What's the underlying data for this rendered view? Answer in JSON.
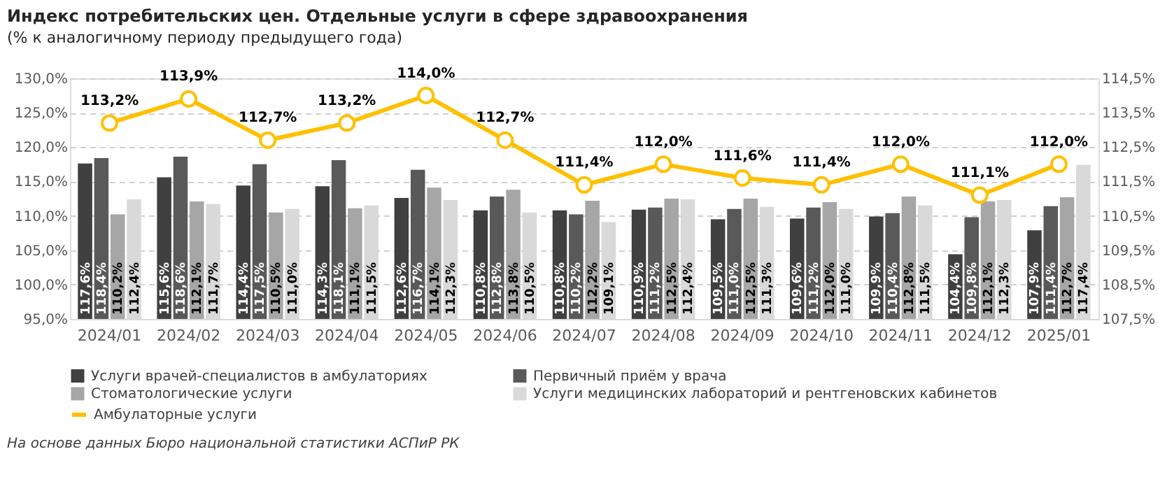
{
  "chart_data": {
    "type": "bar",
    "title": "Индекс потребительских цен. Отдельные услуги в сфере здравоохранения",
    "subtitle": "(% к аналогичному периоду предыдущего года)",
    "categories": [
      "2024/01",
      "2024/02",
      "2024/03",
      "2024/04",
      "2024/05",
      "2024/06",
      "2024/07",
      "2024/08",
      "2024/09",
      "2024/10",
      "2024/11",
      "2024/12",
      "2025/01"
    ],
    "series": [
      {
        "name": "Услуги врачей-специалистов в амбулаториях",
        "color": "#404040",
        "values": [
          117.6,
          115.6,
          114.4,
          114.3,
          112.6,
          110.8,
          110.8,
          110.9,
          109.5,
          109.6,
          109.9,
          104.4,
          107.9
        ],
        "value_labels": [
          "117,6%",
          "115,6%",
          "114,4%",
          "114,3%",
          "112,6%",
          "110,8%",
          "110,8%",
          "110,9%",
          "109,5%",
          "109,6%",
          "109,9%",
          "104,4%",
          "107,9%"
        ]
      },
      {
        "name": "Первичный приём у врача",
        "color": "#595959",
        "values": [
          118.4,
          118.6,
          117.5,
          118.1,
          116.7,
          112.8,
          110.2,
          111.2,
          111.0,
          111.2,
          110.4,
          109.8,
          111.4
        ],
        "value_labels": [
          "118,4%",
          "118,6%",
          "117,5%",
          "118,1%",
          "116,7%",
          "112,8%",
          "110,2%",
          "111,2%",
          "111,0%",
          "111,2%",
          "110,4%",
          "109,8%",
          "111,4%"
        ]
      },
      {
        "name": "Стоматологические услуги",
        "color": "#a6a6a6",
        "values": [
          110.2,
          112.1,
          110.5,
          111.1,
          114.1,
          113.8,
          112.2,
          112.5,
          112.5,
          112.0,
          112.8,
          112.1,
          112.7
        ],
        "value_labels": [
          "110,2%",
          "112,1%",
          "110,5%",
          "111,1%",
          "114,1%",
          "113,8%",
          "112,2%",
          "112,5%",
          "112,5%",
          "112,0%",
          "112,8%",
          "112,1%",
          "112,7%"
        ]
      },
      {
        "name": "Услуги медицинских лабораторий и рентгеновских кабинетов",
        "color": "#d9d9d9",
        "values": [
          112.4,
          111.7,
          111.0,
          111.5,
          112.3,
          110.5,
          109.1,
          112.4,
          111.3,
          111.0,
          111.5,
          112.3,
          117.4
        ],
        "value_labels": [
          "112,4%",
          "111,7%",
          "111,0%",
          "111,5%",
          "112,3%",
          "110,5%",
          "109,1%",
          "112,4%",
          "111,3%",
          "111,0%",
          "111,5%",
          "112,3%",
          "117,4%"
        ]
      },
      {
        "name": "Амбулаторные услуги",
        "type": "line",
        "axis": "y2",
        "color": "#ffc000",
        "values": [
          113.2,
          113.9,
          112.7,
          113.2,
          114.0,
          112.7,
          111.4,
          112.0,
          111.6,
          111.4,
          112.0,
          111.1,
          112.0
        ],
        "value_labels": [
          "113,2%",
          "113,9%",
          "112,7%",
          "113,2%",
          "114,0%",
          "112,7%",
          "111,4%",
          "112,0%",
          "111,6%",
          "111,4%",
          "112,0%",
          "111,1%",
          "112,0%"
        ]
      }
    ],
    "ylim": [
      95,
      130
    ],
    "yticks": [
      {
        "value": 95,
        "label": "95,0%"
      },
      {
        "value": 100,
        "label": "100,0%"
      },
      {
        "value": 105,
        "label": "105,0%"
      },
      {
        "value": 110,
        "label": "110,0%"
      },
      {
        "value": 115,
        "label": "115,0%"
      },
      {
        "value": 120,
        "label": "120,0%"
      },
      {
        "value": 125,
        "label": "125,0%"
      },
      {
        "value": 130,
        "label": "130,0%"
      }
    ],
    "y2lim": [
      107.5,
      114.5
    ],
    "y2ticks": [
      {
        "value": 107.5,
        "label": "107,5%"
      },
      {
        "value": 108.5,
        "label": "108,5%"
      },
      {
        "value": 109.5,
        "label": "109,5%"
      },
      {
        "value": 110.5,
        "label": "110,5%"
      },
      {
        "value": 111.5,
        "label": "111,5%"
      },
      {
        "value": 112.5,
        "label": "112,5%"
      },
      {
        "value": 113.5,
        "label": "113,5%"
      },
      {
        "value": 114.5,
        "label": "114,5%"
      }
    ],
    "grid": "y",
    "legend": "bottom",
    "marker": "circle",
    "line_style": "solid",
    "annotations": [
      "На основе данных Бюро национальной статистики АСПиР РК"
    ]
  }
}
